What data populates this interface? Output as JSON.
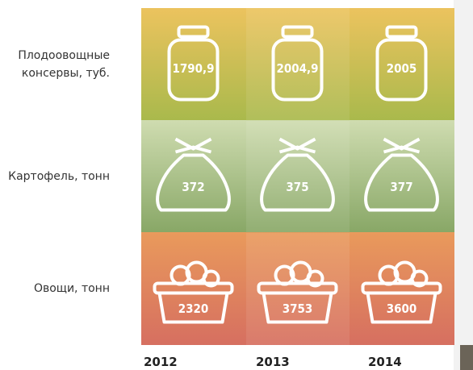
{
  "rows": [
    {
      "label": "Плодоовощные консервы, туб.",
      "values": [
        "1790,9",
        "2004,9",
        "2005"
      ]
    },
    {
      "label": "Картофель, тонн",
      "values": [
        "372",
        "375",
        "377"
      ]
    },
    {
      "label": "Овощи, тонн",
      "values": [
        "2320",
        "3753",
        "3600"
      ]
    }
  ],
  "years": [
    "2012",
    "2013",
    "2014"
  ]
}
